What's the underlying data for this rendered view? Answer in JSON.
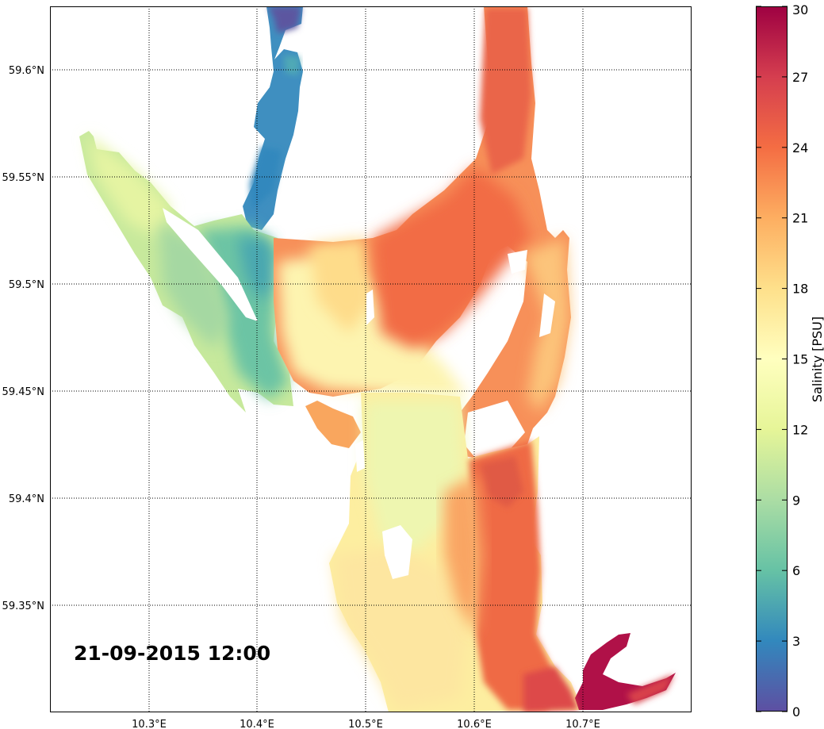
{
  "timestamp": "21-09-2015 12:00",
  "colorbar": {
    "label": "Salinity [PSU]",
    "ticks": [
      "0",
      "3",
      "6",
      "9",
      "12",
      "15",
      "18",
      "21",
      "24",
      "27",
      "30"
    ],
    "colormap": "Spectral_r",
    "stops": [
      "#5e4fa2",
      "#3288bd",
      "#66c2a5",
      "#abdda4",
      "#e6f598",
      "#ffffbf",
      "#fee08b",
      "#fdae61",
      "#f46d43",
      "#d53e4f",
      "#9e0142"
    ],
    "range": [
      0,
      30
    ]
  },
  "axes": {
    "lon_ticks": [
      "10.3°E",
      "10.4°E",
      "10.5°E",
      "10.6°E",
      "10.7°E"
    ],
    "lat_ticks": [
      "59.35°N",
      "59.4°N",
      "59.45°N",
      "59.5°N",
      "59.55°N",
      "59.6°N"
    ],
    "grid": "dotted"
  },
  "colors": {
    "land": "#ffffff",
    "frame": "#000000"
  }
}
